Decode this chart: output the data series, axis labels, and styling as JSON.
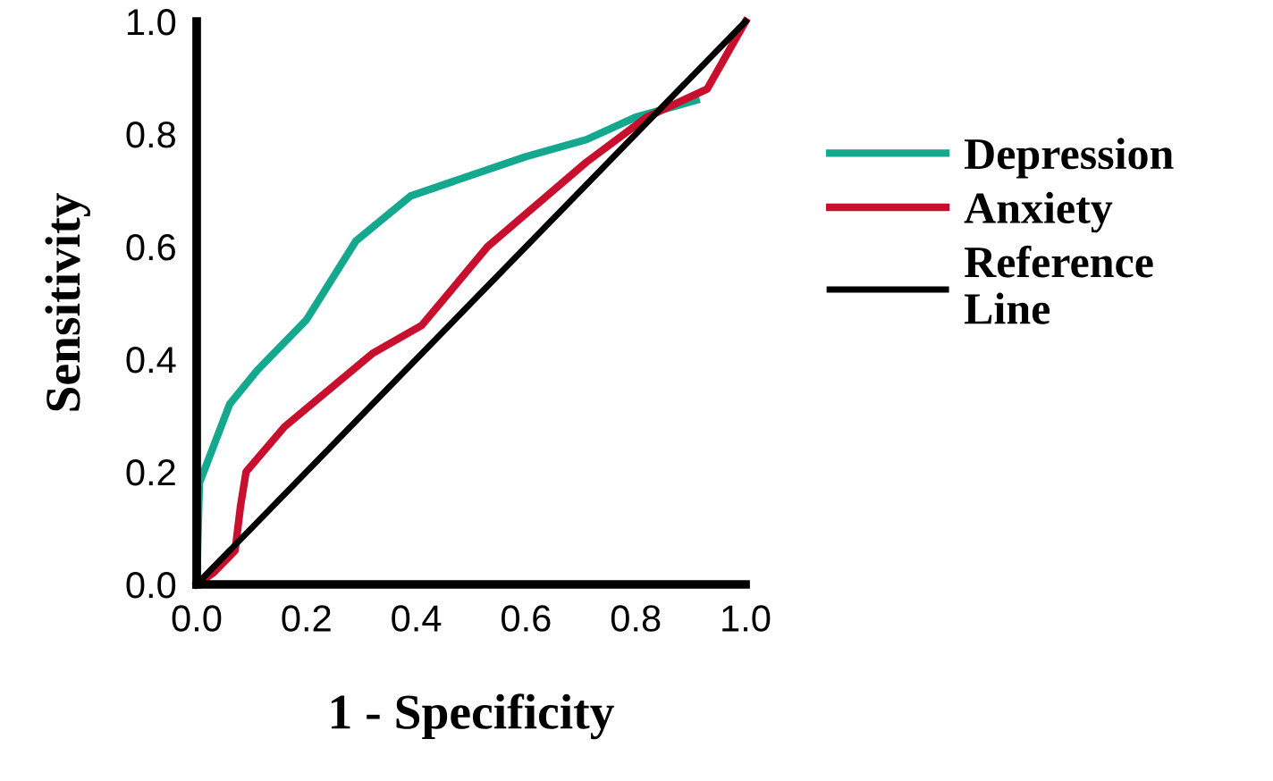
{
  "chart_data": {
    "type": "line",
    "xlabel": "1 - Specificity",
    "ylabel": "Sensitivity",
    "xlim": [
      0,
      1
    ],
    "ylim": [
      0,
      1
    ],
    "xticks": [
      {
        "value": 0,
        "label": "0.0"
      },
      0.2,
      0.4,
      0.6,
      0.8,
      {
        "value": 1,
        "label": "1.0"
      }
    ],
    "yticks": [
      {
        "value": 0,
        "label": "0.0"
      },
      0.2,
      0.4,
      0.6,
      0.8,
      {
        "value": 1,
        "label": "1.0"
      }
    ],
    "grid": false,
    "legend": "right",
    "marker": "none",
    "line_style": "solid",
    "series": [
      {
        "name": "Depression",
        "color": "#14a88f",
        "x": [
          0,
          0.005,
          0.06,
          0.11,
          0.2,
          0.29,
          0.39,
          0.6,
          0.71,
          0.8,
          0.91
        ],
        "values": [
          0,
          0.18,
          0.32,
          0.38,
          0.47,
          0.61,
          0.69,
          0.76,
          0.79,
          0.83,
          0.86
        ]
      },
      {
        "name": "Anxiety",
        "color": "#c8102e",
        "x": [
          0,
          0.03,
          0.07,
          0.08,
          0.09,
          0.16,
          0.32,
          0.41,
          0.53,
          0.71,
          0.82,
          0.93,
          1.0
        ],
        "values": [
          0,
          0.02,
          0.06,
          0.14,
          0.2,
          0.28,
          0.41,
          0.46,
          0.6,
          0.75,
          0.83,
          0.88,
          1.0
        ]
      },
      {
        "name": "Reference\nLine",
        "color": "#000000",
        "x": [
          0,
          1
        ],
        "values": [
          0,
          1
        ]
      }
    ]
  }
}
